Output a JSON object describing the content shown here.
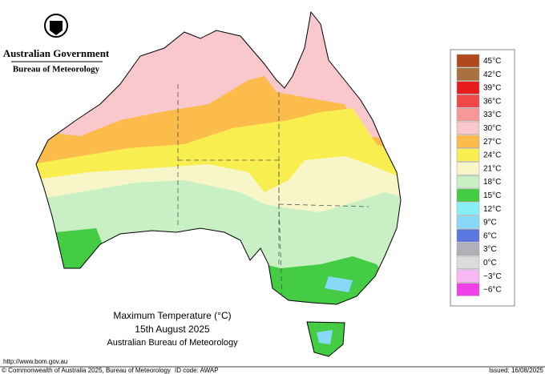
{
  "header": {
    "agency": "Australian Government",
    "bureau": "Bureau of Meteorology"
  },
  "title": {
    "line1": "Maximum Temperature (°C)",
    "line2": "15th August 2025",
    "line3": "Australian Bureau of Meteorology"
  },
  "legend": [
    {
      "label": "45°C",
      "color": "#b04a1c"
    },
    {
      "label": "42°C",
      "color": "#a9713f"
    },
    {
      "label": "39°C",
      "color": "#e81c1c"
    },
    {
      "label": "36°C",
      "color": "#f04848"
    },
    {
      "label": "33°C",
      "color": "#f59898"
    },
    {
      "label": "30°C",
      "color": "#f8c8cc"
    },
    {
      "label": "27°C",
      "color": "#fbbc4c"
    },
    {
      "label": "24°C",
      "color": "#f8ee50"
    },
    {
      "label": "21°C",
      "color": "#f6f6c8"
    },
    {
      "label": "18°C",
      "color": "#c8f0c4"
    },
    {
      "label": "15°C",
      "color": "#44cc44"
    },
    {
      "label": "12°C",
      "color": "#88f0f4"
    },
    {
      "label": "9°C",
      "color": "#88d8f8"
    },
    {
      "label": "6°C",
      "color": "#5a78e0"
    },
    {
      "label": "3°C",
      "color": "#b0b0b8"
    },
    {
      "label": "0°C",
      "color": "#dcdcdc"
    },
    {
      "label": "−3°C",
      "color": "#f8b8f4"
    },
    {
      "label": "−6°C",
      "color": "#f040e8"
    }
  ],
  "footer": {
    "url": "http://www.bom.gov.au",
    "copyright": "© Commonwealth of Australia 2025, Bureau of Meteorology",
    "id": "ID code: AWAP",
    "issued": "Issued: 16/08/2025"
  }
}
